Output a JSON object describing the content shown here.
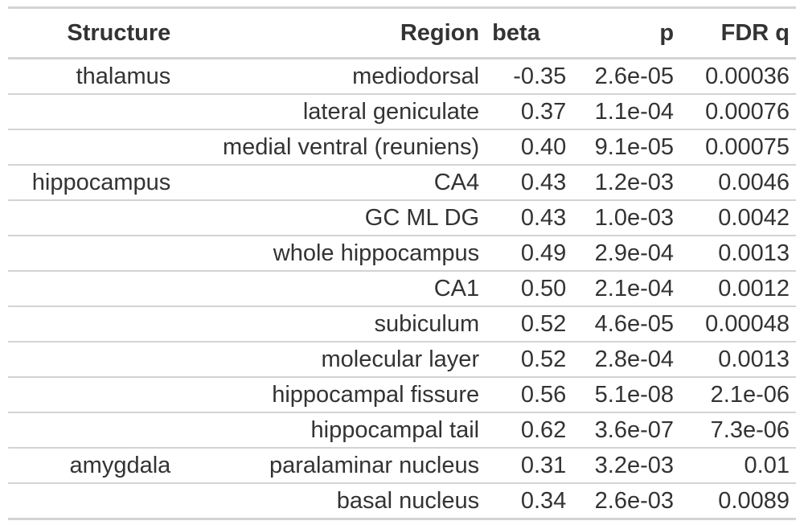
{
  "table": {
    "columns": [
      "Structure",
      "Region",
      "beta",
      "p",
      "FDR q"
    ],
    "rows": [
      {
        "structure": "thalamus",
        "region": "mediodorsal",
        "beta": "-0.35",
        "p": "2.6e-05",
        "q": "0.00036"
      },
      {
        "structure": "",
        "region": "lateral geniculate",
        "beta": "0.37",
        "p": "1.1e-04",
        "q": "0.00076"
      },
      {
        "structure": "",
        "region": "medial ventral (reuniens)",
        "beta": "0.40",
        "p": "9.1e-05",
        "q": "0.00075"
      },
      {
        "structure": "hippocampus",
        "region": "CA4",
        "beta": "0.43",
        "p": "1.2e-03",
        "q": "0.0046"
      },
      {
        "structure": "",
        "region": "GC ML DG",
        "beta": "0.43",
        "p": "1.0e-03",
        "q": "0.0042"
      },
      {
        "structure": "",
        "region": "whole hippocampus",
        "beta": "0.49",
        "p": "2.9e-04",
        "q": "0.0013"
      },
      {
        "structure": "",
        "region": "CA1",
        "beta": "0.50",
        "p": "2.1e-04",
        "q": "0.0012"
      },
      {
        "structure": "",
        "region": "subiculum",
        "beta": "0.52",
        "p": "4.6e-05",
        "q": "0.00048"
      },
      {
        "structure": "",
        "region": "molecular layer",
        "beta": "0.52",
        "p": "2.8e-04",
        "q": "0.0013"
      },
      {
        "structure": "",
        "region": "hippocampal fissure",
        "beta": "0.56",
        "p": "5.1e-08",
        "q": "2.1e-06"
      },
      {
        "structure": "",
        "region": "hippocampal tail",
        "beta": "0.62",
        "p": "3.6e-07",
        "q": "7.3e-06"
      },
      {
        "structure": "amygdala",
        "region": "paralaminar nucleus",
        "beta": "0.31",
        "p": "3.2e-03",
        "q": "0.01"
      },
      {
        "structure": "",
        "region": "basal nucleus",
        "beta": "0.34",
        "p": "2.6e-03",
        "q": "0.0089"
      }
    ]
  }
}
